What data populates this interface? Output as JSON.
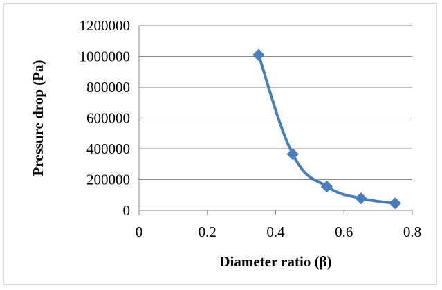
{
  "chart_data": {
    "type": "line",
    "title": "",
    "xlabel": "Diameter ratio (β)",
    "ylabel": "Pressure drop (Pa)",
    "xlim": [
      0,
      0.8
    ],
    "ylim": [
      0,
      1200000
    ],
    "x_ticks": [
      "0",
      "0.2",
      "0.4",
      "0.6",
      "0.8"
    ],
    "y_ticks": [
      "0",
      "200000",
      "400000",
      "600000",
      "800000",
      "1000000",
      "1200000"
    ],
    "grid": "horizontal",
    "legend": "none",
    "line_style": "smoothed",
    "marker": "diamond",
    "series": [
      {
        "color": "#4a7ebb",
        "x": [
          0.35,
          0.45,
          0.55,
          0.65,
          0.75
        ],
        "y": [
          1010000,
          365000,
          155000,
          78000,
          46000
        ]
      }
    ]
  }
}
